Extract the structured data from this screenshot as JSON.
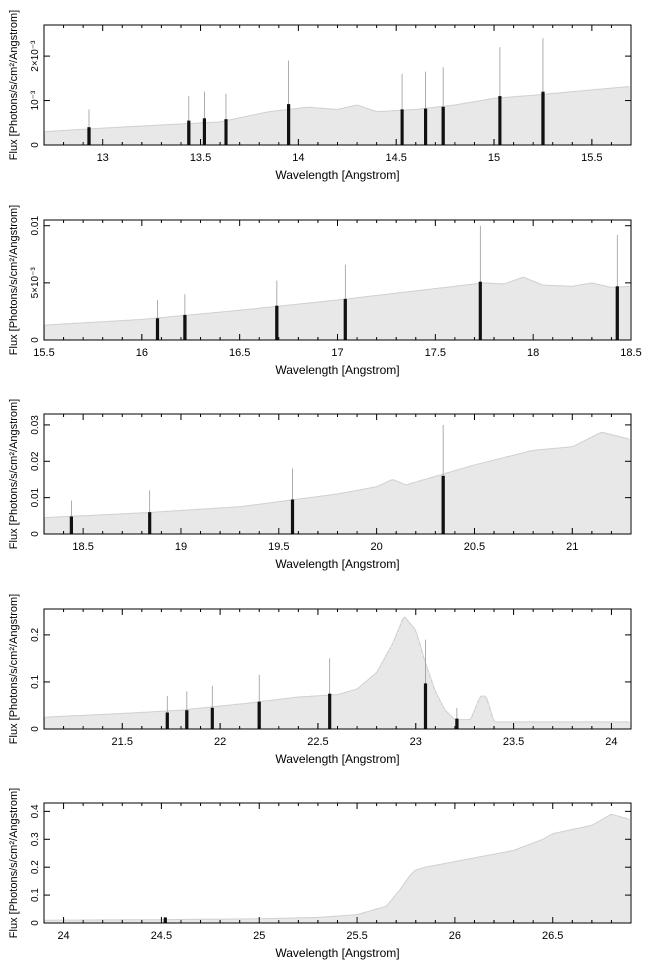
{
  "chart_data": [
    {
      "type": "line",
      "title": "",
      "xlabel": "Wavelength [Angstrom]",
      "ylabel": "Flux [Photons/s/cm²/Angstrom]",
      "xlim": [
        12.7,
        15.7
      ],
      "ylim": [
        0,
        0.0027
      ],
      "xticks": [
        {
          "v": 13,
          "label": "13"
        },
        {
          "v": 13.5,
          "label": "13.5"
        },
        {
          "v": 14,
          "label": "14"
        },
        {
          "v": 14.5,
          "label": "14.5"
        },
        {
          "v": 15,
          "label": "15"
        },
        {
          "v": 15.5,
          "label": "15.5"
        }
      ],
      "yticks": [
        {
          "v": 0,
          "label": "0"
        },
        {
          "v": 0.001,
          "label": "10⁻³"
        },
        {
          "v": 0.002,
          "label": "2×10⁻³"
        }
      ],
      "series": [
        {
          "x": [
            12.7,
            13.0,
            13.3,
            13.6,
            13.85,
            14.05,
            14.2,
            14.3,
            14.4,
            14.6,
            14.8,
            15.0,
            15.2,
            15.4,
            15.7
          ],
          "values": [
            0.0003,
            0.00038,
            0.00045,
            0.00052,
            0.00075,
            0.00085,
            0.0008,
            0.0009,
            0.00075,
            0.0008,
            0.0009,
            0.00105,
            0.00112,
            0.0012,
            0.00132
          ]
        }
      ],
      "lines": [
        {
          "x": 12.93,
          "bar": 0.0004,
          "err": 0.0008
        },
        {
          "x": 13.44,
          "bar": 0.00055,
          "err": 0.0011
        },
        {
          "x": 13.52,
          "bar": 0.0006,
          "err": 0.0012
        },
        {
          "x": 13.63,
          "bar": 0.00058,
          "err": 0.00115
        },
        {
          "x": 13.95,
          "bar": 0.00092,
          "err": 0.0019
        },
        {
          "x": 14.53,
          "bar": 0.0008,
          "err": 0.0016
        },
        {
          "x": 14.65,
          "bar": 0.00082,
          "err": 0.00165
        },
        {
          "x": 14.74,
          "bar": 0.00086,
          "err": 0.00175
        },
        {
          "x": 15.03,
          "bar": 0.0011,
          "err": 0.0022
        },
        {
          "x": 15.25,
          "bar": 0.0012,
          "err": 0.0024
        }
      ]
    },
    {
      "type": "line",
      "title": "",
      "xlabel": "Wavelength [Angstrom]",
      "ylabel": "Flux [Photons/s/cm²/Angstrom]",
      "xlim": [
        15.5,
        18.5
      ],
      "ylim": [
        0,
        0.0105
      ],
      "xticks": [
        {
          "v": 15.5,
          "label": "15.5"
        },
        {
          "v": 16,
          "label": "16"
        },
        {
          "v": 16.5,
          "label": "16.5"
        },
        {
          "v": 17,
          "label": "17"
        },
        {
          "v": 17.5,
          "label": "17.5"
        },
        {
          "v": 18,
          "label": "18"
        },
        {
          "v": 18.5,
          "label": "18.5"
        }
      ],
      "yticks": [
        {
          "v": 0,
          "label": "0"
        },
        {
          "v": 0.005,
          "label": "5×10⁻³"
        },
        {
          "v": 0.01,
          "label": "0.01"
        }
      ],
      "series": [
        {
          "x": [
            15.5,
            16.0,
            16.5,
            17.0,
            17.5,
            17.75,
            17.85,
            17.95,
            18.05,
            18.2,
            18.3,
            18.4,
            18.5
          ],
          "values": [
            0.0013,
            0.0018,
            0.0026,
            0.0035,
            0.0045,
            0.005,
            0.0049,
            0.0055,
            0.0048,
            0.0047,
            0.005,
            0.0046,
            0.0047
          ]
        }
      ],
      "lines": [
        {
          "x": 16.08,
          "bar": 0.0019,
          "err": 0.0035
        },
        {
          "x": 16.22,
          "bar": 0.0022,
          "err": 0.004
        },
        {
          "x": 16.69,
          "bar": 0.003,
          "err": 0.0052
        },
        {
          "x": 17.04,
          "bar": 0.0036,
          "err": 0.0066
        },
        {
          "x": 17.73,
          "bar": 0.0051,
          "err": 0.01
        },
        {
          "x": 18.43,
          "bar": 0.0047,
          "err": 0.0092
        }
      ]
    },
    {
      "type": "line",
      "title": "",
      "xlabel": "Wavelength [Angstrom]",
      "ylabel": "Flux [Photons/s/cm²/Angstrom]",
      "xlim": [
        18.3,
        21.3
      ],
      "ylim": [
        0,
        0.033
      ],
      "xticks": [
        {
          "v": 18.5,
          "label": "18.5"
        },
        {
          "v": 19,
          "label": "19"
        },
        {
          "v": 19.5,
          "label": "19.5"
        },
        {
          "v": 20,
          "label": "20"
        },
        {
          "v": 20.5,
          "label": "20.5"
        },
        {
          "v": 21,
          "label": "21"
        }
      ],
      "yticks": [
        {
          "v": 0,
          "label": "0"
        },
        {
          "v": 0.01,
          "label": "0.01"
        },
        {
          "v": 0.02,
          "label": "0.02"
        },
        {
          "v": 0.03,
          "label": "0.03"
        }
      ],
      "series": [
        {
          "x": [
            18.3,
            18.8,
            19.3,
            19.8,
            20.0,
            20.08,
            20.15,
            20.5,
            20.8,
            21.0,
            21.15,
            21.3
          ],
          "values": [
            0.0045,
            0.0058,
            0.0075,
            0.011,
            0.013,
            0.015,
            0.0135,
            0.019,
            0.023,
            0.024,
            0.028,
            0.026
          ]
        }
      ],
      "lines": [
        {
          "x": 18.44,
          "bar": 0.0048,
          "err": 0.0092
        },
        {
          "x": 18.84,
          "bar": 0.006,
          "err": 0.012
        },
        {
          "x": 19.57,
          "bar": 0.0095,
          "err": 0.018
        },
        {
          "x": 20.34,
          "bar": 0.016,
          "err": 0.03
        }
      ]
    },
    {
      "type": "line",
      "title": "",
      "xlabel": "Wavelength [Angstrom]",
      "ylabel": "Flux [Photons/s/cm²/Angstrom]",
      "xlim": [
        21.1,
        24.1
      ],
      "ylim": [
        0,
        0.255
      ],
      "xticks": [
        {
          "v": 21.5,
          "label": "21.5"
        },
        {
          "v": 22,
          "label": "22"
        },
        {
          "v": 22.5,
          "label": "22.5"
        },
        {
          "v": 23,
          "label": "23"
        },
        {
          "v": 23.5,
          "label": "23.5"
        },
        {
          "v": 24,
          "label": "24"
        }
      ],
      "yticks": [
        {
          "v": 0,
          "label": "0"
        },
        {
          "v": 0.1,
          "label": "0.1"
        },
        {
          "v": 0.2,
          "label": "0.2"
        }
      ],
      "series": [
        {
          "x": [
            21.1,
            21.5,
            21.8,
            22.1,
            22.4,
            22.6,
            22.7,
            22.8,
            22.88,
            22.94,
            23.0,
            23.05,
            23.1,
            23.15,
            23.2,
            23.28,
            23.33,
            23.36,
            23.4,
            23.5,
            24.1
          ],
          "values": [
            0.025,
            0.033,
            0.04,
            0.053,
            0.068,
            0.073,
            0.085,
            0.12,
            0.18,
            0.24,
            0.21,
            0.14,
            0.08,
            0.04,
            0.02,
            0.02,
            0.07,
            0.07,
            0.015,
            0.015,
            0.015
          ]
        }
      ],
      "lines": [
        {
          "x": 21.73,
          "bar": 0.035,
          "err": 0.07
        },
        {
          "x": 21.83,
          "bar": 0.04,
          "err": 0.08
        },
        {
          "x": 21.96,
          "bar": 0.045,
          "err": 0.092
        },
        {
          "x": 22.2,
          "bar": 0.058,
          "err": 0.115
        },
        {
          "x": 22.56,
          "bar": 0.075,
          "err": 0.15
        },
        {
          "x": 23.05,
          "bar": 0.097,
          "err": 0.19
        },
        {
          "x": 23.21,
          "bar": 0.022,
          "err": 0.045
        }
      ]
    },
    {
      "type": "line",
      "title": "",
      "xlabel": "Wavelength [Angstrom]",
      "ylabel": "Flux [Photons/s/cm²/Angstrom]",
      "xlim": [
        23.9,
        26.9
      ],
      "ylim": [
        0,
        0.43
      ],
      "xticks": [
        {
          "v": 24,
          "label": "24"
        },
        {
          "v": 24.5,
          "label": "24.5"
        },
        {
          "v": 25,
          "label": "25"
        },
        {
          "v": 25.5,
          "label": "25.5"
        },
        {
          "v": 26,
          "label": "26"
        },
        {
          "v": 26.5,
          "label": "26.5"
        }
      ],
      "yticks": [
        {
          "v": 0,
          "label": "0"
        },
        {
          "v": 0.1,
          "label": "0.1"
        },
        {
          "v": 0.2,
          "label": "0.2"
        },
        {
          "v": 0.3,
          "label": "0.3"
        },
        {
          "v": 0.4,
          "label": "0.4"
        }
      ],
      "series": [
        {
          "x": [
            23.9,
            24.5,
            25.0,
            25.3,
            25.5,
            25.65,
            25.72,
            25.77,
            25.8,
            25.85,
            26.0,
            26.3,
            26.45,
            26.5,
            26.7,
            26.8,
            26.9
          ],
          "values": [
            0.01,
            0.012,
            0.015,
            0.02,
            0.03,
            0.06,
            0.12,
            0.17,
            0.19,
            0.2,
            0.22,
            0.26,
            0.3,
            0.32,
            0.35,
            0.39,
            0.37
          ]
        }
      ],
      "lines": [
        {
          "x": 24.52,
          "bar": 0.02,
          "err": 0.02
        }
      ]
    }
  ]
}
